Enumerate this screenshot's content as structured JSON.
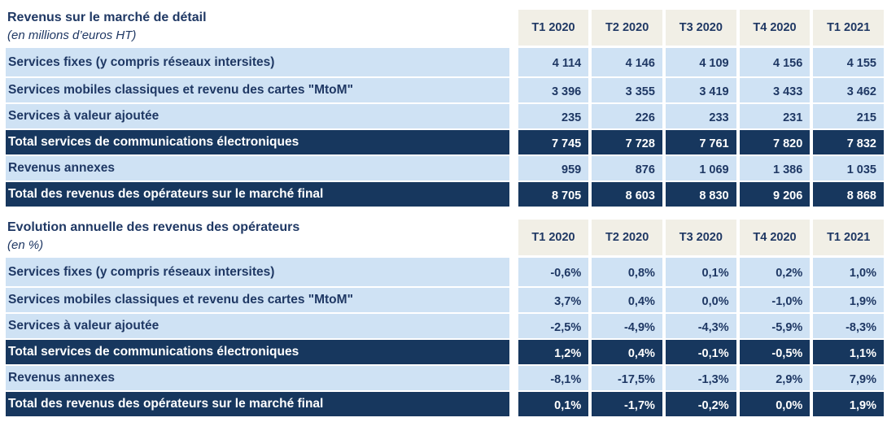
{
  "columns": [
    "T1 2020",
    "T2 2020",
    "T3 2020",
    "T4 2020",
    "T1 2021"
  ],
  "colors": {
    "navy_fill": "#17375E",
    "light_blue_fill": "#CFE2F4",
    "beige_header_fill": "#F1EFE6",
    "text_navy": "#1F3864",
    "text_on_navy": "#FFFFFF"
  },
  "table1": {
    "title": "Revenus sur le marché de détail",
    "subtitle": "(en millions d’euros HT)",
    "rows": [
      {
        "label": "Services fixes (y compris réseaux intersites)",
        "type": "normal",
        "values": [
          "4 114",
          "4 146",
          "4 109",
          "4 156",
          "4 155"
        ]
      },
      {
        "label": "Services mobiles classiques et revenu des cartes \"MtoM\"",
        "type": "normal",
        "values": [
          "3 396",
          "3 355",
          "3 419",
          "3 433",
          "3 462"
        ]
      },
      {
        "label": "Services à valeur ajoutée",
        "type": "normal",
        "values": [
          "235",
          "226",
          "233",
          "231",
          "215"
        ]
      },
      {
        "label": "Total services de communications électroniques",
        "type": "total",
        "values": [
          "7 745",
          "7 728",
          "7 761",
          "7 820",
          "7 832"
        ]
      },
      {
        "label": "Revenus annexes",
        "type": "normal",
        "values": [
          "959",
          "876",
          "1 069",
          "1 386",
          "1 035"
        ]
      },
      {
        "label": "Total des revenus des opérateurs sur le marché final",
        "type": "total",
        "values": [
          "8 705",
          "8 603",
          "8 830",
          "9 206",
          "8 868"
        ]
      }
    ]
  },
  "table2": {
    "title": "Evolution annuelle des revenus des opérateurs",
    "subtitle": "(en %)",
    "rows": [
      {
        "label": "Services fixes (y compris réseaux intersites)",
        "type": "normal",
        "values": [
          "-0,6%",
          "0,8%",
          "0,1%",
          "0,2%",
          "1,0%"
        ]
      },
      {
        "label": "Services mobiles classiques et revenu des cartes \"MtoM\"",
        "type": "normal",
        "values": [
          "3,7%",
          "0,4%",
          "0,0%",
          "-1,0%",
          "1,9%"
        ]
      },
      {
        "label": "Services à valeur ajoutée",
        "type": "normal",
        "values": [
          "-2,5%",
          "-4,9%",
          "-4,3%",
          "-5,9%",
          "-8,3%"
        ]
      },
      {
        "label": "Total services de communications électroniques",
        "type": "total",
        "values": [
          "1,2%",
          "0,4%",
          "-0,1%",
          "-0,5%",
          "1,1%"
        ]
      },
      {
        "label": "Revenus annexes",
        "type": "normal",
        "values": [
          "-8,1%",
          "-17,5%",
          "-1,3%",
          "2,9%",
          "7,9%"
        ]
      },
      {
        "label": "Total des revenus des opérateurs sur le marché final",
        "type": "total",
        "values": [
          "0,1%",
          "-1,7%",
          "-0,2%",
          "0,0%",
          "1,9%"
        ]
      }
    ]
  }
}
